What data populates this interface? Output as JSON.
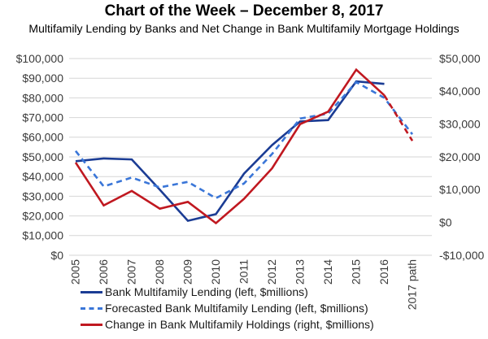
{
  "header": {
    "title": "Chart of the Week – December 8, 2017",
    "subtitle": "Multifamily Lending by Banks and Net Change in Bank Multifamily Mortgage Holdings"
  },
  "theme": {
    "grid_color": "#d6d6d6",
    "axis_text_color": "#3a3a3a",
    "background": "#ffffff"
  },
  "chart_data": {
    "type": "line",
    "grid": true,
    "legend_position": "bottom-left",
    "x_labels": [
      "2005",
      "2006",
      "2007",
      "2008",
      "2009",
      "2010",
      "2011",
      "2012",
      "2013",
      "2014",
      "2015",
      "2016",
      "2017 path"
    ],
    "left_axis": {
      "min": 0,
      "max": 100000,
      "tick_step": 10000,
      "ticks_top_to_bottom": [
        "$100,000",
        "$90,000",
        "$80,000",
        "$70,000",
        "$60,000",
        "$50,000",
        "$40,000",
        "$30,000",
        "$20,000",
        "$10,000",
        "$0"
      ]
    },
    "right_axis": {
      "min": -10000,
      "max": 50000,
      "tick_step": 10000,
      "ticks_top_to_bottom": [
        "$50,000",
        "$40,000",
        "$30,000",
        "$20,000",
        "$10,000",
        "$0",
        "-$10,000"
      ]
    },
    "series": [
      {
        "key": "bank-multifamily-lending",
        "name": "Bank Multifamily Lending (left, $millions)",
        "axis": "left",
        "style": "solid",
        "color": "#1b3c94",
        "x": [
          "2005",
          "2006",
          "2007",
          "2008",
          "2009",
          "2010",
          "2011",
          "2012",
          "2013",
          "2014",
          "2015",
          "2016"
        ],
        "values": [
          47800,
          49200,
          48700,
          33300,
          17500,
          20900,
          41500,
          56000,
          68000,
          68700,
          88400,
          87100
        ]
      },
      {
        "key": "forecasted-bank-multifamily-lending",
        "name": "Forecasted Bank Multifamily Lending (left, $millions)",
        "axis": "left",
        "style": "dashed",
        "color": "#3a76d8",
        "x": [
          "2005",
          "2006",
          "2007",
          "2008",
          "2009",
          "2010",
          "2011",
          "2012",
          "2013",
          "2014",
          "2015",
          "2016",
          "2017 path"
        ],
        "values": [
          53000,
          35000,
          39500,
          34500,
          37300,
          29000,
          36500,
          51500,
          69500,
          72000,
          88000,
          80000,
          61500
        ]
      },
      {
        "key": "change-in-bank-multifamily-holdings",
        "name": "Change in Bank Multifamily Holdings (right, $millions)",
        "axis": "right",
        "style": "solid",
        "dashed_from_index": 11,
        "color": "#c01820",
        "x": [
          "2005",
          "2006",
          "2007",
          "2008",
          "2009",
          "2010",
          "2011",
          "2012",
          "2013",
          "2014",
          "2015",
          "2016",
          "2017 path"
        ],
        "values": [
          18300,
          5200,
          9600,
          4200,
          6300,
          -200,
          7200,
          16500,
          30000,
          33800,
          46600,
          38800,
          24900
        ]
      }
    ]
  }
}
